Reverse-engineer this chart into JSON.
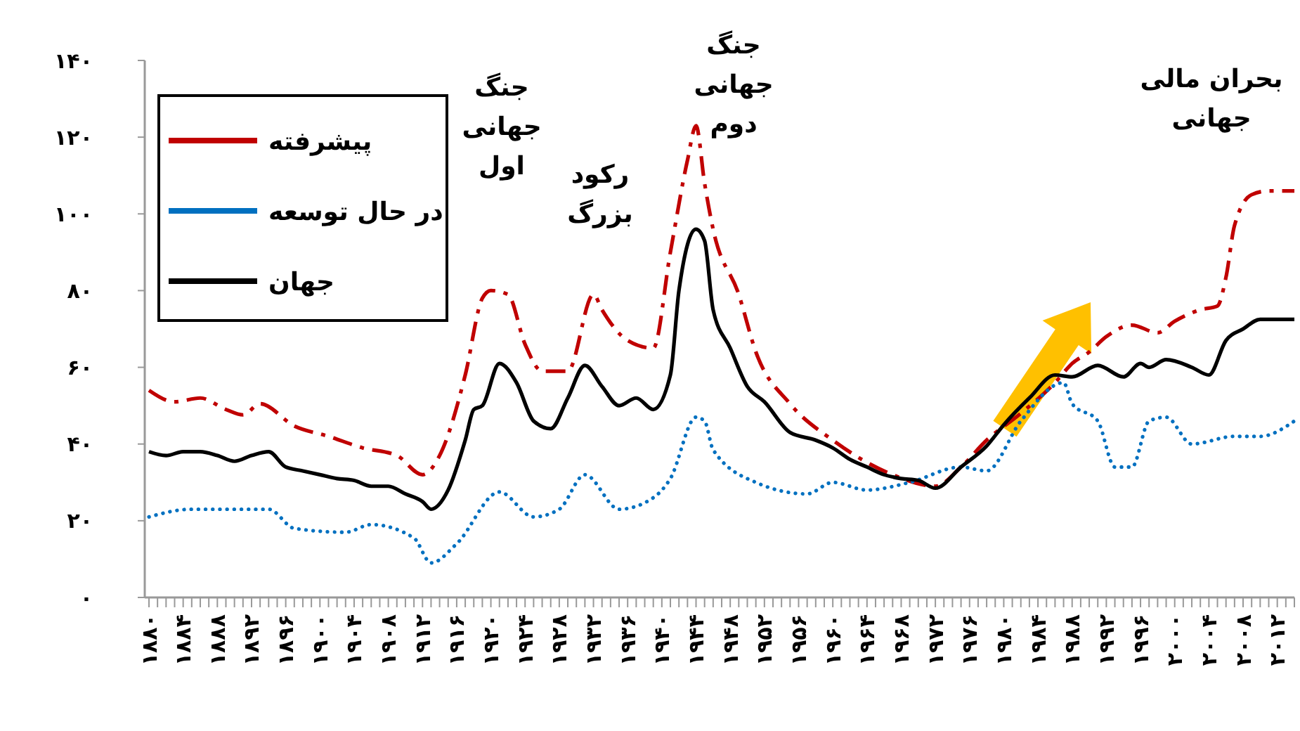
{
  "chart_data": {
    "type": "line",
    "xlim": [
      1880,
      2014
    ],
    "ylim": [
      0,
      140
    ],
    "yticks": [
      {
        "value": 0,
        "label": "۰"
      },
      {
        "value": 20,
        "label": "۲۰"
      },
      {
        "value": 40,
        "label": "۴۰"
      },
      {
        "value": 60,
        "label": "۶۰"
      },
      {
        "value": 80,
        "label": "۸۰"
      },
      {
        "value": 100,
        "label": "۱۰۰"
      },
      {
        "value": 120,
        "label": "۱۲۰"
      },
      {
        "value": 140,
        "label": "۱۴۰"
      }
    ],
    "xticks": [
      {
        "value": 1880,
        "label": "۱۸۸۰"
      },
      {
        "value": 1881,
        "label": null
      },
      {
        "value": 1882,
        "label": null
      },
      {
        "value": 1883,
        "label": null
      },
      {
        "value": 1884,
        "label": "۱۸۸۴"
      },
      {
        "value": 1885,
        "label": null
      },
      {
        "value": 1886,
        "label": null
      },
      {
        "value": 1887,
        "label": null
      },
      {
        "value": 1888,
        "label": "۱۸۸۸"
      },
      {
        "value": 1889,
        "label": null
      },
      {
        "value": 1890,
        "label": null
      },
      {
        "value": 1891,
        "label": null
      },
      {
        "value": 1892,
        "label": "۱۸۹۲"
      },
      {
        "value": 1893,
        "label": null
      },
      {
        "value": 1894,
        "label": null
      },
      {
        "value": 1895,
        "label": null
      },
      {
        "value": 1896,
        "label": "۱۸۹۶"
      },
      {
        "value": 1897,
        "label": null
      },
      {
        "value": 1898,
        "label": null
      },
      {
        "value": 1899,
        "label": null
      },
      {
        "value": 1900,
        "label": "۱۹۰۰"
      },
      {
        "value": 1901,
        "label": null
      },
      {
        "value": 1902,
        "label": null
      },
      {
        "value": 1903,
        "label": null
      },
      {
        "value": 1904,
        "label": "۱۹۰۴"
      },
      {
        "value": 1905,
        "label": null
      },
      {
        "value": 1906,
        "label": null
      },
      {
        "value": 1907,
        "label": null
      },
      {
        "value": 1908,
        "label": "۱۹۰۸"
      },
      {
        "value": 1909,
        "label": null
      },
      {
        "value": 1910,
        "label": null
      },
      {
        "value": 1911,
        "label": null
      },
      {
        "value": 1912,
        "label": "۱۹۱۲"
      },
      {
        "value": 1913,
        "label": null
      },
      {
        "value": 1914,
        "label": null
      },
      {
        "value": 1915,
        "label": null
      },
      {
        "value": 1916,
        "label": "۱۹۱۶"
      },
      {
        "value": 1917,
        "label": null
      },
      {
        "value": 1918,
        "label": null
      },
      {
        "value": 1919,
        "label": null
      },
      {
        "value": 1920,
        "label": "۱۹۲۰"
      },
      {
        "value": 1921,
        "label": null
      },
      {
        "value": 1922,
        "label": null
      },
      {
        "value": 1923,
        "label": null
      },
      {
        "value": 1924,
        "label": "۱۹۲۴"
      },
      {
        "value": 1925,
        "label": null
      },
      {
        "value": 1926,
        "label": null
      },
      {
        "value": 1927,
        "label": null
      },
      {
        "value": 1928,
        "label": "۱۹۲۸"
      },
      {
        "value": 1929,
        "label": null
      },
      {
        "value": 1930,
        "label": null
      },
      {
        "value": 1931,
        "label": null
      },
      {
        "value": 1932,
        "label": "۱۹۳۲"
      },
      {
        "value": 1933,
        "label": null
      },
      {
        "value": 1934,
        "label": null
      },
      {
        "value": 1935,
        "label": null
      },
      {
        "value": 1936,
        "label": "۱۹۳۶"
      },
      {
        "value": 1937,
        "label": null
      },
      {
        "value": 1938,
        "label": null
      },
      {
        "value": 1939,
        "label": null
      },
      {
        "value": 1940,
        "label": "۱۹۴۰"
      },
      {
        "value": 1941,
        "label": null
      },
      {
        "value": 1942,
        "label": null
      },
      {
        "value": 1943,
        "label": null
      },
      {
        "value": 1944,
        "label": "۱۹۴۴"
      },
      {
        "value": 1945,
        "label": null
      },
      {
        "value": 1946,
        "label": null
      },
      {
        "value": 1947,
        "label": null
      },
      {
        "value": 1948,
        "label": "۱۹۴۸"
      },
      {
        "value": 1949,
        "label": null
      },
      {
        "value": 1950,
        "label": null
      },
      {
        "value": 1951,
        "label": null
      },
      {
        "value": 1952,
        "label": "۱۹۵۲"
      },
      {
        "value": 1953,
        "label": null
      },
      {
        "value": 1954,
        "label": null
      },
      {
        "value": 1955,
        "label": null
      },
      {
        "value": 1956,
        "label": "۱۹۵۶"
      },
      {
        "value": 1957,
        "label": null
      },
      {
        "value": 1958,
        "label": null
      },
      {
        "value": 1959,
        "label": null
      },
      {
        "value": 1960,
        "label": "۱۹۶۰"
      },
      {
        "value": 1961,
        "label": null
      },
      {
        "value": 1962,
        "label": null
      },
      {
        "value": 1963,
        "label": null
      },
      {
        "value": 1964,
        "label": "۱۹۶۴"
      },
      {
        "value": 1965,
        "label": null
      },
      {
        "value": 1966,
        "label": null
      },
      {
        "value": 1967,
        "label": null
      },
      {
        "value": 1968,
        "label": "۱۹۶۸"
      },
      {
        "value": 1969,
        "label": null
      },
      {
        "value": 1970,
        "label": null
      },
      {
        "value": 1971,
        "label": null
      },
      {
        "value": 1972,
        "label": "۱۹۷۲"
      },
      {
        "value": 1973,
        "label": null
      },
      {
        "value": 1974,
        "label": null
      },
      {
        "value": 1975,
        "label": null
      },
      {
        "value": 1976,
        "label": "۱۹۷۶"
      },
      {
        "value": 1977,
        "label": null
      },
      {
        "value": 1978,
        "label": null
      },
      {
        "value": 1979,
        "label": null
      },
      {
        "value": 1980,
        "label": "۱۹۸۰"
      },
      {
        "value": 1981,
        "label": null
      },
      {
        "value": 1982,
        "label": null
      },
      {
        "value": 1983,
        "label": null
      },
      {
        "value": 1984,
        "label": "۱۹۸۴"
      },
      {
        "value": 1985,
        "label": null
      },
      {
        "value": 1986,
        "label": null
      },
      {
        "value": 1987,
        "label": null
      },
      {
        "value": 1988,
        "label": "۱۹۸۸"
      },
      {
        "value": 1989,
        "label": null
      },
      {
        "value": 1990,
        "label": null
      },
      {
        "value": 1991,
        "label": null
      },
      {
        "value": 1992,
        "label": "۱۹۹۲"
      },
      {
        "value": 1993,
        "label": null
      },
      {
        "value": 1994,
        "label": null
      },
      {
        "value": 1995,
        "label": null
      },
      {
        "value": 1996,
        "label": "۱۹۹۶"
      },
      {
        "value": 1997,
        "label": null
      },
      {
        "value": 1998,
        "label": null
      },
      {
        "value": 1999,
        "label": null
      },
      {
        "value": 2000,
        "label": "۲۰۰۰"
      },
      {
        "value": 2001,
        "label": null
      },
      {
        "value": 2002,
        "label": null
      },
      {
        "value": 2003,
        "label": null
      },
      {
        "value": 2004,
        "label": "۲۰۰۴"
      },
      {
        "value": 2005,
        "label": null
      },
      {
        "value": 2006,
        "label": null
      },
      {
        "value": 2007,
        "label": null
      },
      {
        "value": 2008,
        "label": "۲۰۰۸"
      },
      {
        "value": 2009,
        "label": null
      },
      {
        "value": 2010,
        "label": null
      },
      {
        "value": 2011,
        "label": null
      },
      {
        "value": 2012,
        "label": "۲۰۱۲"
      },
      {
        "value": 2013,
        "label": null
      },
      {
        "value": 2014,
        "label": null
      }
    ],
    "legend": "top left",
    "series": [
      {
        "name": "پیشرفته",
        "color": "#c00000",
        "line_style": "dashed",
        "x": [
          1880,
          1883,
          1886,
          1889,
          1891,
          1893,
          1897,
          1901,
          1905,
          1909,
          1912,
          1914,
          1917,
          1919,
          1920,
          1922,
          1924,
          1926,
          1929,
          1932,
          1933,
          1936,
          1939,
          1941,
          1943,
          1944,
          1945,
          1946,
          1949,
          1951,
          1955,
          1960,
          1967,
          1972,
          1975,
          1978,
          1982,
          1986,
          1988,
          1990,
          1992,
          1995,
          1998,
          2000,
          2003,
          2005,
          2006,
          2007,
          2009,
          2011,
          2014
        ],
        "values": [
          54,
          51,
          52,
          49,
          47.6,
          50.5,
          44.7,
          42,
          39,
          37,
          32,
          37,
          58,
          78,
          80,
          79,
          66,
          59,
          59,
          79,
          75,
          67,
          65,
          90,
          114,
          123,
          108,
          96,
          79,
          64,
          50.5,
          41,
          32,
          29,
          34,
          41,
          48,
          56,
          61,
          64,
          68,
          71,
          69,
          72,
          75,
          76,
          83.5,
          97,
          105,
          106,
          106
        ]
      },
      {
        "name": "در حال توسعه",
        "color": "#0070c0",
        "line_style": "dotted",
        "x": [
          1880,
          1885,
          1894,
          1897,
          1903,
          1906,
          1911,
          1913,
          1916,
          1921,
          1925,
          1928,
          1931,
          1935,
          1939,
          1941,
          1944,
          1945,
          1946,
          1951,
          1957,
          1960,
          1964,
          1969,
          1975,
          1978,
          1982,
          1987,
          1988,
          1991,
          1993,
          1995,
          1997,
          1999,
          2002,
          2007,
          2010,
          2014
        ],
        "values": [
          21,
          23,
          23,
          18,
          17,
          19,
          15.5,
          9,
          14,
          27.5,
          21,
          23,
          32,
          23,
          26,
          31,
          47,
          46,
          38.5,
          30,
          27,
          30,
          28,
          30,
          34,
          33,
          46,
          56,
          50.5,
          46,
          34,
          34,
          46,
          47,
          40,
          42,
          42,
          46
        ]
      },
      {
        "name": "جهان",
        "color": "#000000",
        "line_style": "solid",
        "x": [
          1880,
          1882,
          1884,
          1886,
          1888,
          1890,
          1892,
          1894,
          1896,
          1898,
          1900,
          1902,
          1904,
          1906,
          1908,
          1910,
          1912,
          1913,
          1915,
          1917,
          1918,
          1919,
          1921,
          1923,
          1925,
          1927,
          1929,
          1931,
          1933,
          1935,
          1937,
          1939,
          1941,
          1942,
          1944,
          1945,
          1946,
          1948,
          1950,
          1952,
          1955,
          1958,
          1960,
          1962,
          1964,
          1966,
          1968,
          1970,
          1972,
          1975,
          1978,
          1980,
          1983,
          1986,
          1988,
          1991,
          1994,
          1996,
          1997,
          1999,
          2002,
          2004,
          2006,
          2008,
          2010,
          2014
        ],
        "values": [
          38,
          37,
          38,
          38,
          37,
          35.5,
          37,
          38,
          34,
          33,
          32,
          31,
          30.5,
          29,
          29,
          27,
          25,
          23,
          28,
          41,
          49,
          50,
          61,
          56,
          46,
          44,
          52,
          60.5,
          55,
          50,
          52,
          49,
          58,
          80,
          96,
          93,
          75,
          65,
          55,
          51,
          43,
          41,
          39,
          36,
          34,
          32,
          31,
          30.5,
          28.5,
          34,
          39.5,
          45,
          52,
          58,
          57.5,
          60.5,
          57.5,
          61,
          60,
          62,
          60,
          58,
          67,
          70,
          72.5,
          72.5
        ]
      }
    ],
    "annotations": [
      "جنگ\nجهانی\nاول",
      "رکود\nبزرگ",
      "جنگ\nجهانی\nدوم",
      "بحران مالی\nجهانی"
    ]
  }
}
